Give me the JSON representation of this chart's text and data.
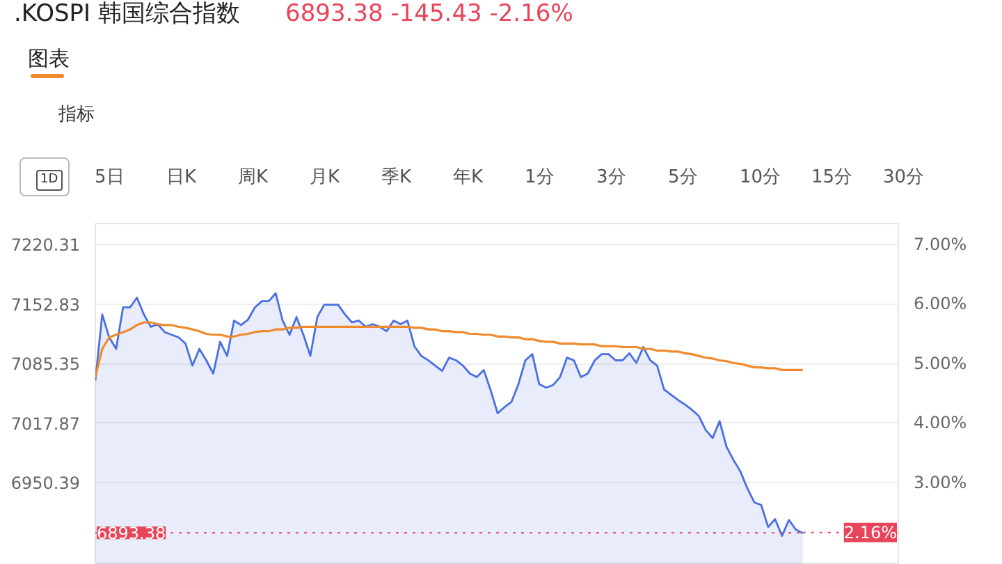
{
  "chart_data": {
    "type": "area",
    "title": ".KOSPI 韩国综合指数",
    "subtitle": "6893.38 -145.43 -2.16%",
    "annotations": [
      "图表",
      "指标",
      "1D",
      "5日",
      "日K",
      "周K",
      "月K",
      "季K",
      "年K",
      "1分",
      "3分",
      "5分",
      "10分",
      "15分",
      "30分"
    ],
    "categories": [
      null,
      null,
      null,
      null,
      null,
      null,
      null,
      null,
      null,
      null,
      null,
      null,
      null,
      null,
      null,
      null,
      null,
      null,
      null,
      null,
      null,
      null,
      null,
      null,
      null,
      null,
      null,
      null,
      null,
      null,
      null,
      null,
      null,
      null,
      null,
      null,
      null,
      null,
      null,
      null,
      null,
      null,
      null,
      null,
      null,
      null,
      null,
      null,
      null,
      null,
      null,
      null,
      null,
      null,
      null,
      null,
      null,
      null,
      null,
      null,
      null,
      null,
      null,
      null,
      null,
      null,
      null,
      null,
      null,
      null,
      null,
      null,
      null,
      null,
      null,
      null,
      null,
      null,
      null,
      null,
      null,
      null,
      null,
      null,
      null,
      null,
      null,
      null,
      null,
      null,
      null,
      null,
      null,
      null,
      null,
      null,
      null,
      null,
      null,
      null,
      null,
      null,
      null
    ],
    "series": [
      {
        "type": "area",
        "color": "#4a6fe3",
        "values": [
          7066,
          7141,
          7115,
          7102,
          7149,
          7149,
          7160,
          7141,
          7127,
          7130,
          7121,
          7118,
          7115,
          7108,
          7083,
          7102,
          7089,
          7074,
          7110,
          7094,
          7134,
          7129,
          7135,
          7149,
          7156,
          7156,
          7165,
          7134,
          7118,
          7138,
          7118,
          7094,
          7138,
          7152,
          7152,
          7152,
          7141,
          7132,
          7134,
          7127,
          7130,
          7127,
          7122,
          7134,
          7130,
          7134,
          7105,
          7094,
          7089,
          7083,
          7077,
          7092,
          7089,
          7083,
          7074,
          7070,
          7078,
          7055,
          7029,
          7036,
          7042,
          7062,
          7089,
          7096,
          7062,
          7058,
          7061,
          7070,
          7092,
          7089,
          7070,
          7074,
          7089,
          7096,
          7096,
          7089,
          7089,
          7097,
          7086,
          7104,
          7089,
          7083,
          7056,
          7050,
          7044,
          7039,
          7033,
          7026,
          7010,
          7001,
          7020,
          6991,
          6976,
          6963,
          6944,
          6928,
          6925,
          6900,
          6909,
          6890,
          6908,
          6897,
          6893
        ]
      },
      {
        "type": "line",
        "color": "#f08a2c",
        "values": [
          7070,
          7102,
          7115,
          7118,
          7121,
          7124,
          7129,
          7132,
          7132,
          7130,
          7129,
          7129,
          7127,
          7126,
          7124,
          7122,
          7119,
          7118,
          7118,
          7116,
          7116,
          7118,
          7119,
          7121,
          7122,
          7122,
          7124,
          7124,
          7126,
          7126,
          7127,
          7127,
          7127,
          7127,
          7127,
          7127,
          7127,
          7127,
          7127,
          7127,
          7127,
          7127,
          7127,
          7127,
          7127,
          7127,
          7126,
          7126,
          7124,
          7124,
          7122,
          7122,
          7121,
          7121,
          7119,
          7119,
          7118,
          7118,
          7116,
          7116,
          7115,
          7115,
          7113,
          7113,
          7111,
          7110,
          7110,
          7108,
          7108,
          7108,
          7107,
          7107,
          7107,
          7105,
          7105,
          7105,
          7104,
          7104,
          7104,
          7102,
          7102,
          7100,
          7100,
          7099,
          7099,
          7097,
          7096,
          7094,
          7092,
          7091,
          7089,
          7088,
          7086,
          7085,
          7083,
          7081,
          7081,
          7080,
          7080,
          7078,
          7078,
          7078,
          7078
        ]
      }
    ],
    "ylim": [
      6857.3,
      7244.1
    ],
    "yticks": [
      6950.39,
      7017.87,
      7085.35,
      7152.83,
      7220.31
    ],
    "y2lim": [
      1.62,
      7.35
    ],
    "y2ticks": [
      {
        "value": 3,
        "label": "3.00%"
      },
      {
        "value": 4,
        "label": "4.00%"
      },
      {
        "value": 5,
        "label": "5.00%"
      },
      {
        "value": 6,
        "label": "6.00%"
      },
      {
        "value": 7,
        "label": "7.00%"
      }
    ],
    "ref_lines": [
      {
        "axis": "y",
        "value": 6893.38,
        "label": "6893.38",
        "color": "#e8445a",
        "line_style": "dotted"
      },
      {
        "axis": "y2",
        "value": 2.16,
        "label": "2.16%",
        "color": "#e8445a",
        "line_style": "dotted"
      }
    ],
    "grid": "y"
  }
}
